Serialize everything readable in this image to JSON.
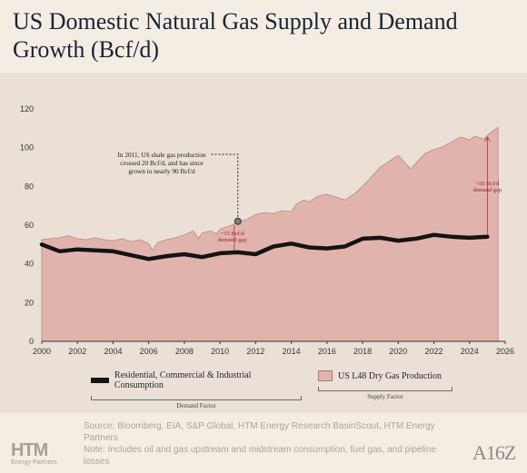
{
  "title": "US Domestic Natural Gas Supply and Demand Growth (Bcf/d)",
  "chart_data": {
    "type": "area",
    "title": "US Domestic Natural Gas Supply and Demand Growth (Bcf/d)",
    "xlabel": "",
    "ylabel": "",
    "xlim": [
      2000,
      2026
    ],
    "ylim": [
      0,
      120
    ],
    "x_ticks": [
      "2000",
      "2002",
      "2004",
      "2006",
      "2008",
      "2010",
      "2012",
      "2014",
      "2016",
      "2018",
      "2020",
      "2022",
      "2024",
      "2026"
    ],
    "y_ticks": [
      "0",
      "20",
      "40",
      "60",
      "80",
      "100",
      "120"
    ],
    "grid": false,
    "series": [
      {
        "name": "US L48 Dry Gas Production",
        "kind": "area",
        "color": "#e0b4ad",
        "points": [
          [
            2000.0,
            52.5
          ],
          [
            2000.5,
            53
          ],
          [
            2001.0,
            53.5
          ],
          [
            2001.5,
            54.5
          ],
          [
            2002.0,
            53
          ],
          [
            2002.5,
            52.5
          ],
          [
            2003.0,
            53.5
          ],
          [
            2003.5,
            52.5
          ],
          [
            2004.0,
            52
          ],
          [
            2004.5,
            53
          ],
          [
            2005.0,
            51.5
          ],
          [
            2005.5,
            52.5
          ],
          [
            2006.0,
            50.5
          ],
          [
            2006.2,
            47
          ],
          [
            2006.5,
            51
          ],
          [
            2007.0,
            52.5
          ],
          [
            2007.5,
            53.5
          ],
          [
            2008.0,
            55
          ],
          [
            2008.5,
            57
          ],
          [
            2008.8,
            53
          ],
          [
            2009.0,
            56
          ],
          [
            2009.5,
            57
          ],
          [
            2009.8,
            55.5
          ],
          [
            2010.0,
            58
          ],
          [
            2010.5,
            59.5
          ],
          [
            2011.0,
            61.5
          ],
          [
            2011.5,
            63
          ],
          [
            2012.0,
            65.5
          ],
          [
            2012.5,
            66.5
          ],
          [
            2013.0,
            66
          ],
          [
            2013.5,
            67.5
          ],
          [
            2014.0,
            67
          ],
          [
            2014.3,
            71
          ],
          [
            2014.7,
            73
          ],
          [
            2015.0,
            72
          ],
          [
            2015.5,
            75
          ],
          [
            2016.0,
            76
          ],
          [
            2016.5,
            74.5
          ],
          [
            2017.0,
            73
          ],
          [
            2017.5,
            76
          ],
          [
            2018.0,
            80
          ],
          [
            2018.5,
            85
          ],
          [
            2019.0,
            90
          ],
          [
            2019.5,
            93
          ],
          [
            2019.8,
            95
          ],
          [
            2020.0,
            96
          ],
          [
            2020.3,
            93
          ],
          [
            2020.7,
            89
          ],
          [
            2021.0,
            92
          ],
          [
            2021.5,
            97
          ],
          [
            2022.0,
            99
          ],
          [
            2022.5,
            100.5
          ],
          [
            2023.0,
            103
          ],
          [
            2023.5,
            105.5
          ],
          [
            2024.0,
            104
          ],
          [
            2024.3,
            106
          ],
          [
            2024.8,
            104.5
          ],
          [
            2025.2,
            108
          ],
          [
            2025.6,
            110.5
          ]
        ]
      },
      {
        "name": "Residential, Commercial & Industrial Consumption",
        "kind": "line",
        "color": "#141414",
        "points": [
          [
            2000,
            50
          ],
          [
            2001,
            46.5
          ],
          [
            2002,
            47.5
          ],
          [
            2003,
            47
          ],
          [
            2004,
            46.5
          ],
          [
            2005,
            44.5
          ],
          [
            2006,
            42.5
          ],
          [
            2007,
            44
          ],
          [
            2008,
            45
          ],
          [
            2009,
            43.5
          ],
          [
            2010,
            45.5
          ],
          [
            2011,
            46
          ],
          [
            2012,
            45
          ],
          [
            2013,
            49
          ],
          [
            2014,
            50.5
          ],
          [
            2015,
            48.5
          ],
          [
            2016,
            48
          ],
          [
            2017,
            49
          ],
          [
            2018,
            53
          ],
          [
            2019,
            53.5
          ],
          [
            2020,
            52
          ],
          [
            2021,
            53
          ],
          [
            2022,
            55
          ],
          [
            2023,
            54
          ],
          [
            2024,
            53.5
          ],
          [
            2025,
            54
          ]
        ]
      }
    ],
    "annotations": [
      {
        "text": "In 2011, US shale gas production crossed 20 Bcf/d, and has since grown to nearly 90 Bcf/d",
        "x": 2011,
        "y": 62
      },
      {
        "text": "~15 Bcf/d demand gap",
        "x": 2010.8,
        "y_from": 46,
        "y_to": 61
      },
      {
        "text": "~50 Bcf/d demand gap",
        "x": 2025,
        "y_from": 54,
        "y_to": 106
      }
    ],
    "legend": {
      "position": "bottom",
      "groups": [
        {
          "label": "Demand Factor",
          "entry": "Residential, Commercial & Industrial Consumption"
        },
        {
          "label": "Supply Factor",
          "entry": "US L48 Dry Gas Production"
        }
      ]
    }
  },
  "footer": {
    "source": "Source: Bloomberg, EIA, S&P Global, HTM Energy Research BasinScout, HTM Energy Partners",
    "note": "Note: Includes oil and gas upstream and midstream consumption, fuel gas, and pipeline losses"
  },
  "logos": {
    "htm_big": "HTM",
    "htm_small": "Energy Partners",
    "a16z": "A16Z"
  }
}
